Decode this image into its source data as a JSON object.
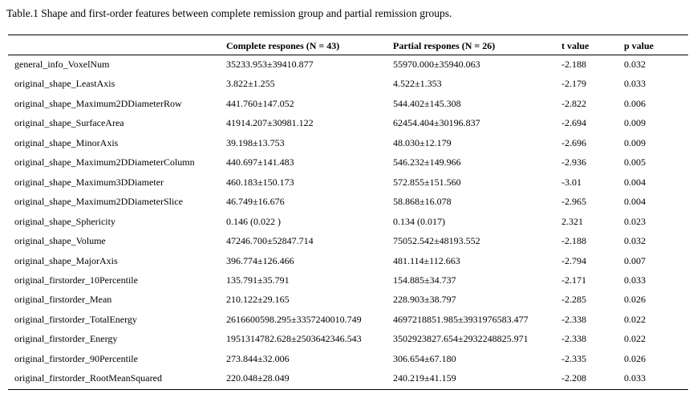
{
  "title": "Table.1 Shape and first-order features between complete remission group and partial remission groups.",
  "table": {
    "header": [
      "Complete respones (N = 43)",
      "Partial respones (N = 26)",
      "t value",
      "p value"
    ],
    "rows": [
      [
        "general_info_VoxelNum",
        "35233.953±39410.877",
        "55970.000±35940.063",
        "-2.188",
        "0.032"
      ],
      [
        "original_shape_LeastAxis",
        "3.822±1.255",
        "4.522±1.353",
        "-2.179",
        "0.033"
      ],
      [
        "original_shape_Maximum2DDiameterRow",
        "441.760±147.052",
        "544.402±145.308",
        "-2.822",
        "0.006"
      ],
      [
        "original_shape_SurfaceArea",
        "41914.207±30981.122",
        "62454.404±30196.837",
        "-2.694",
        "0.009"
      ],
      [
        "original_shape_MinorAxis",
        "39.198±13.753",
        "48.030±12.179",
        "-2.696",
        "0.009"
      ],
      [
        "original_shape_Maximum2DDiameterColumn",
        "440.697±141.483",
        "546.232±149.966",
        "-2.936",
        "0.005"
      ],
      [
        "original_shape_Maximum3DDiameter",
        "460.183±150.173",
        "572.855±151.560",
        "-3.01",
        "0.004"
      ],
      [
        "original_shape_Maximum2DDiameterSlice",
        "46.749±16.676",
        "58.868±16.078",
        "-2.965",
        "0.004"
      ],
      [
        "original_shape_Sphericity",
        "0.146 (0.022 )",
        "0.134 (0.017)",
        "2.321",
        "0.023"
      ],
      [
        "original_shape_Volume",
        "47246.700±52847.714",
        "75052.542±48193.552",
        "-2.188",
        "0.032"
      ],
      [
        "original_shape_MajorAxis",
        "396.774±126.466",
        "481.114±112.663",
        "-2.794",
        "0.007"
      ],
      [
        "original_firstorder_10Percentile",
        "135.791±35.791",
        "154.885±34.737",
        "-2.171",
        "0.033"
      ],
      [
        "original_firstorder_Mean",
        "210.122±29.165",
        "228.903±38.797",
        "-2.285",
        "0.026"
      ],
      [
        "original_firstorder_TotalEnergy",
        "2616600598.295±3357240010.749",
        "4697218851.985±3931976583.477",
        "-2.338",
        "0.022"
      ],
      [
        "original_firstorder_Energy",
        "1951314782.628±2503642346.543",
        "3502923827.654±2932248825.971",
        "-2.338",
        "0.022"
      ],
      [
        "original_firstorder_90Percentile",
        "273.844±32.006",
        "306.654±67.180",
        "-2.335",
        "0.026"
      ],
      [
        "original_firstorder_RootMeanSquared",
        "220.048±28.049",
        "240.219±41.159",
        "-2.208",
        "0.033"
      ]
    ]
  }
}
